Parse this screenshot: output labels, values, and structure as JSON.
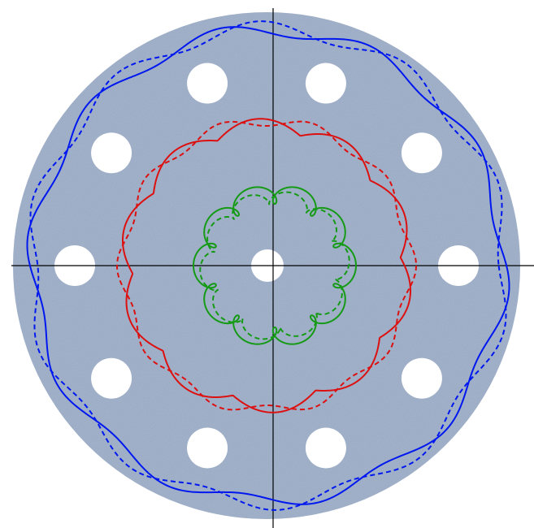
{
  "diagram": {
    "disc": {
      "color": "#97a8c2",
      "hole_color": "#ffffff",
      "outer_hole_count": 10
    },
    "axes": {
      "color": "#000000"
    },
    "curves": [
      {
        "name": "outer-blue",
        "color": "#0018ef",
        "lobes": 10
      },
      {
        "name": "middle-red",
        "color": "#dd1010",
        "lobes": 10
      },
      {
        "name": "inner-green",
        "color": "#149a14",
        "lobes": 10
      }
    ]
  }
}
